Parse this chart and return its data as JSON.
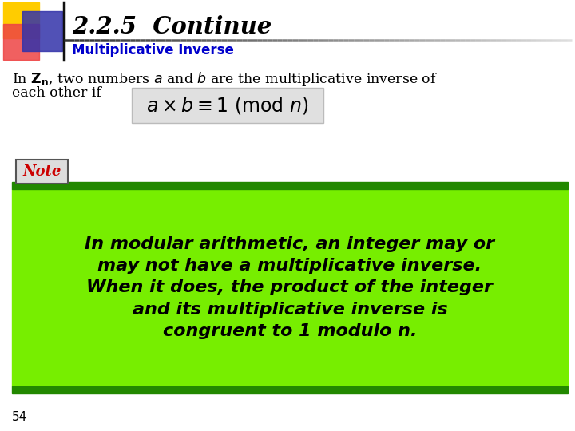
{
  "title": "2.2.5  Continue",
  "subtitle": "Multiplicative Inverse",
  "note_text": "In modular arithmetic, an integer may or\nmay not have a multiplicative inverse.\nWhen it does, the product of the integer\nand its multiplicative inverse is\ncongruent to 1 modulo n.",
  "note_label": "Note",
  "page_num": "54",
  "bg_color": "#ffffff",
  "title_color": "#000000",
  "subtitle_color": "#0000cc",
  "body_color": "#000000",
  "note_label_color": "#cc0000",
  "note_box_bg": "#77ee00",
  "note_box_border": "#228800",
  "formula_box_bg": "#e0e0e0",
  "decoration_yellow": "#ffcc00",
  "decoration_red": "#ee4444",
  "decoration_blue": "#3333aa",
  "line_color": "#555555"
}
